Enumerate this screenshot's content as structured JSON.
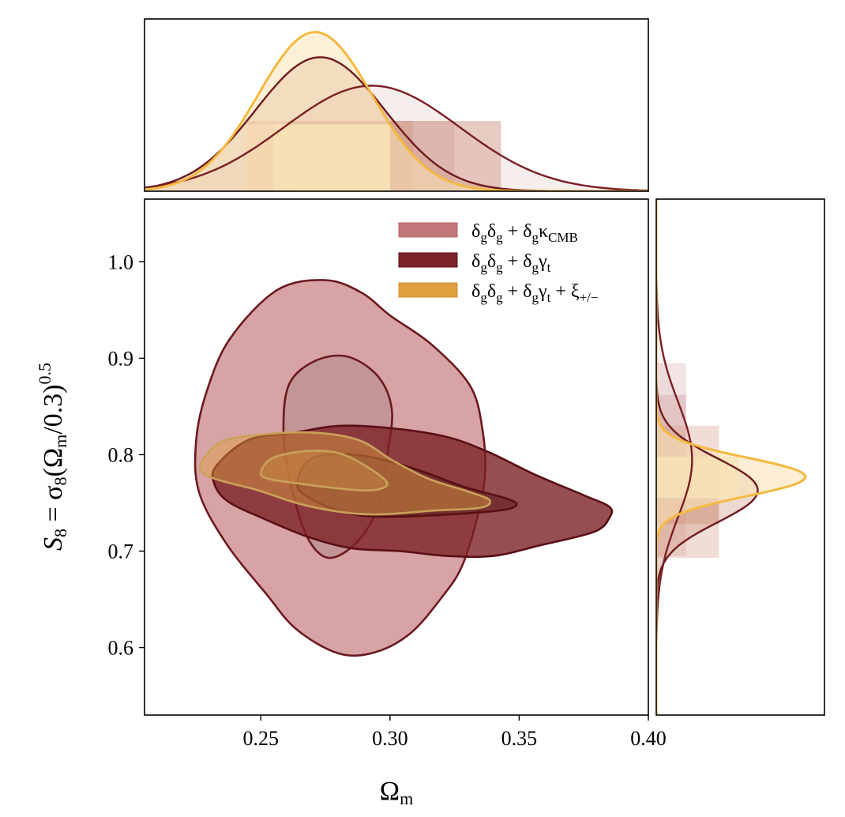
{
  "chart_data": {
    "type": "contour",
    "xlabel": {
      "main": "Ω",
      "sub": "m"
    },
    "ylabel": {
      "s": "S",
      "s_sub": "8",
      "eq": " = σ",
      "sig_sub": "8",
      "open": "(Ω",
      "om_sub": "m",
      "close": "/0.3)",
      "exp": "0.5"
    },
    "xlim": [
      0.205,
      0.4
    ],
    "ylim": [
      0.53,
      1.065
    ],
    "xticks": [
      {
        "v": 0.25,
        "label": "0.25"
      },
      {
        "v": 0.3,
        "label": "0.30"
      },
      {
        "v": 0.35,
        "label": "0.35"
      },
      {
        "v": 0.4,
        "label": "0.40"
      }
    ],
    "yticks": [
      {
        "v": 0.6,
        "label": "0.6"
      },
      {
        "v": 0.7,
        "label": "0.7"
      },
      {
        "v": 0.8,
        "label": "0.8"
      },
      {
        "v": 0.9,
        "label": "0.9"
      },
      {
        "v": 1.0,
        "label": "1.0"
      }
    ],
    "legend": {
      "position": "upper-right",
      "entries": [
        {
          "key": "kcmb",
          "color": "#c4777a",
          "base": "δ",
          "b_sub": "g",
          "mid": "δ",
          "m_sub": "g",
          "plus": " + δ",
          "p_sub": "g",
          "tail": "κ",
          "t_sub": "CMB",
          "extra": "",
          "e_sub": ""
        },
        {
          "key": "gt",
          "color": "#7d2227",
          "base": "δ",
          "b_sub": "g",
          "mid": "δ",
          "m_sub": "g",
          "plus": " + δ",
          "p_sub": "g",
          "tail": "γ",
          "t_sub": "t",
          "extra": "",
          "e_sub": ""
        },
        {
          "key": "xi",
          "color": "#e0a040",
          "base": "δ",
          "b_sub": "g",
          "mid": "δ",
          "m_sub": "g",
          "plus": " + δ",
          "p_sub": "g",
          "tail": "γ",
          "t_sub": "t",
          "extra": " + ξ",
          "e_sub": "+/−"
        }
      ]
    },
    "series": [
      {
        "name": "δgδg + δgκCMB",
        "key": "kcmb",
        "color": "#c4777a",
        "line": "#6b1a1e",
        "marginal_fill": "#ddb8b9",
        "contour_68": [
          [
            0.2608,
            0.872
          ],
          [
            0.2702,
            0.8962
          ],
          [
            0.2831,
            0.902
          ],
          [
            0.2951,
            0.882
          ],
          [
            0.3007,
            0.847
          ],
          [
            0.299,
            0.8
          ],
          [
            0.2955,
            0.747
          ],
          [
            0.2875,
            0.71
          ],
          [
            0.2762,
            0.693
          ],
          [
            0.2677,
            0.716
          ],
          [
            0.2614,
            0.772
          ],
          [
            0.2588,
            0.824
          ]
        ],
        "contour_95": [
          [
            0.229,
            0.865
          ],
          [
            0.238,
            0.92
          ],
          [
            0.2562,
            0.9705
          ],
          [
            0.2749,
            0.981
          ],
          [
            0.289,
            0.968
          ],
          [
            0.3002,
            0.944
          ],
          [
            0.3162,
            0.914
          ],
          [
            0.3311,
            0.871
          ],
          [
            0.3359,
            0.824
          ],
          [
            0.3367,
            0.777
          ],
          [
            0.3334,
            0.731
          ],
          [
            0.3278,
            0.684
          ],
          [
            0.3206,
            0.654
          ],
          [
            0.308,
            0.615
          ],
          [
            0.294,
            0.595
          ],
          [
            0.28,
            0.594
          ],
          [
            0.2638,
            0.619
          ],
          [
            0.252,
            0.656
          ],
          [
            0.2366,
            0.708
          ],
          [
            0.226,
            0.762
          ],
          [
            0.225,
            0.815
          ]
        ],
        "marginal_x": {
          "mu": 0.293,
          "sigma": 0.034,
          "height": 0.63,
          "ci68": [
            0.261,
            0.325
          ],
          "ci95": [
            0.245,
            0.343
          ]
        },
        "marginal_y": {
          "mu": 0.795,
          "sigma": 0.06,
          "height": 0.24,
          "ci68": [
            0.728,
            0.862
          ],
          "ci95": [
            0.695,
            0.895
          ]
        }
      },
      {
        "name": "δgδg + δgγt",
        "key": "gt",
        "color": "#7d2227",
        "line": "#5a0f14",
        "marginal_fill": "#d4a08a",
        "contour_68": [
          [
            0.2642,
            0.771
          ],
          [
            0.2697,
            0.796
          ],
          [
            0.2865,
            0.8
          ],
          [
            0.3075,
            0.787
          ],
          [
            0.3283,
            0.767
          ],
          [
            0.3445,
            0.755
          ],
          [
            0.349,
            0.748
          ],
          [
            0.342,
            0.742
          ],
          [
            0.316,
            0.737
          ],
          [
            0.293,
            0.736
          ],
          [
            0.279,
            0.743
          ],
          [
            0.2676,
            0.757
          ]
        ],
        "contour_95": [
          [
            0.2327,
            0.788
          ],
          [
            0.245,
            0.815
          ],
          [
            0.2631,
            0.823
          ],
          [
            0.2812,
            0.83
          ],
          [
            0.3021,
            0.827
          ],
          [
            0.3226,
            0.818
          ],
          [
            0.3387,
            0.802
          ],
          [
            0.3556,
            0.78
          ],
          [
            0.3749,
            0.758
          ],
          [
            0.3849,
            0.746
          ],
          [
            0.385,
            0.735
          ],
          [
            0.379,
            0.72
          ],
          [
            0.358,
            0.706
          ],
          [
            0.34,
            0.695
          ],
          [
            0.322,
            0.695
          ],
          [
            0.304,
            0.7
          ],
          [
            0.285,
            0.703
          ],
          [
            0.268,
            0.715
          ],
          [
            0.25,
            0.735
          ],
          [
            0.237,
            0.752
          ],
          [
            0.232,
            0.77
          ]
        ],
        "marginal_x": {
          "mu": 0.273,
          "sigma": 0.025,
          "height": 0.8,
          "ci68": [
            0.261,
            0.309
          ],
          "ci95": [
            0.244,
            0.343
          ]
        },
        "marginal_y": {
          "mu": 0.763,
          "sigma": 0.033,
          "height": 0.68,
          "ci68": [
            0.728,
            0.798
          ],
          "ci95": [
            0.693,
            0.83
          ]
        }
      },
      {
        "name": "δgδg + δgγt + ξ+/−",
        "key": "xi",
        "color": "#e0a040",
        "line": "#c9a25a",
        "marginal_fill": "#f9e3b7",
        "contour_68": [
          [
            0.25,
            0.782
          ],
          [
            0.255,
            0.797
          ],
          [
            0.269,
            0.804
          ],
          [
            0.281,
            0.801
          ],
          [
            0.292,
            0.786
          ],
          [
            0.299,
            0.77
          ],
          [
            0.293,
            0.763
          ],
          [
            0.28,
            0.765
          ],
          [
            0.265,
            0.77
          ],
          [
            0.253,
            0.775
          ]
        ],
        "contour_95": [
          [
            0.227,
            0.792
          ],
          [
            0.2345,
            0.813
          ],
          [
            0.249,
            0.8205
          ],
          [
            0.27,
            0.823
          ],
          [
            0.288,
            0.815
          ],
          [
            0.301,
            0.794
          ],
          [
            0.315,
            0.775
          ],
          [
            0.33,
            0.762
          ],
          [
            0.3385,
            0.753
          ],
          [
            0.335,
            0.745
          ],
          [
            0.317,
            0.742
          ],
          [
            0.295,
            0.738
          ],
          [
            0.28,
            0.741
          ],
          [
            0.265,
            0.749
          ],
          [
            0.249,
            0.763
          ],
          [
            0.236,
            0.772
          ],
          [
            0.228,
            0.78
          ]
        ],
        "marginal_x": {
          "mu": 0.271,
          "sigma": 0.022,
          "height": 0.95,
          "ci68": [
            0.255,
            0.3
          ],
          "ci95": [
            0.244,
            0.3
          ]
        },
        "marginal_y": {
          "mu": 0.777,
          "sigma": 0.02,
          "height": 1.0,
          "ci68": [
            0.755,
            0.798
          ],
          "ci95": [
            0.755,
            0.798
          ]
        }
      }
    ]
  }
}
